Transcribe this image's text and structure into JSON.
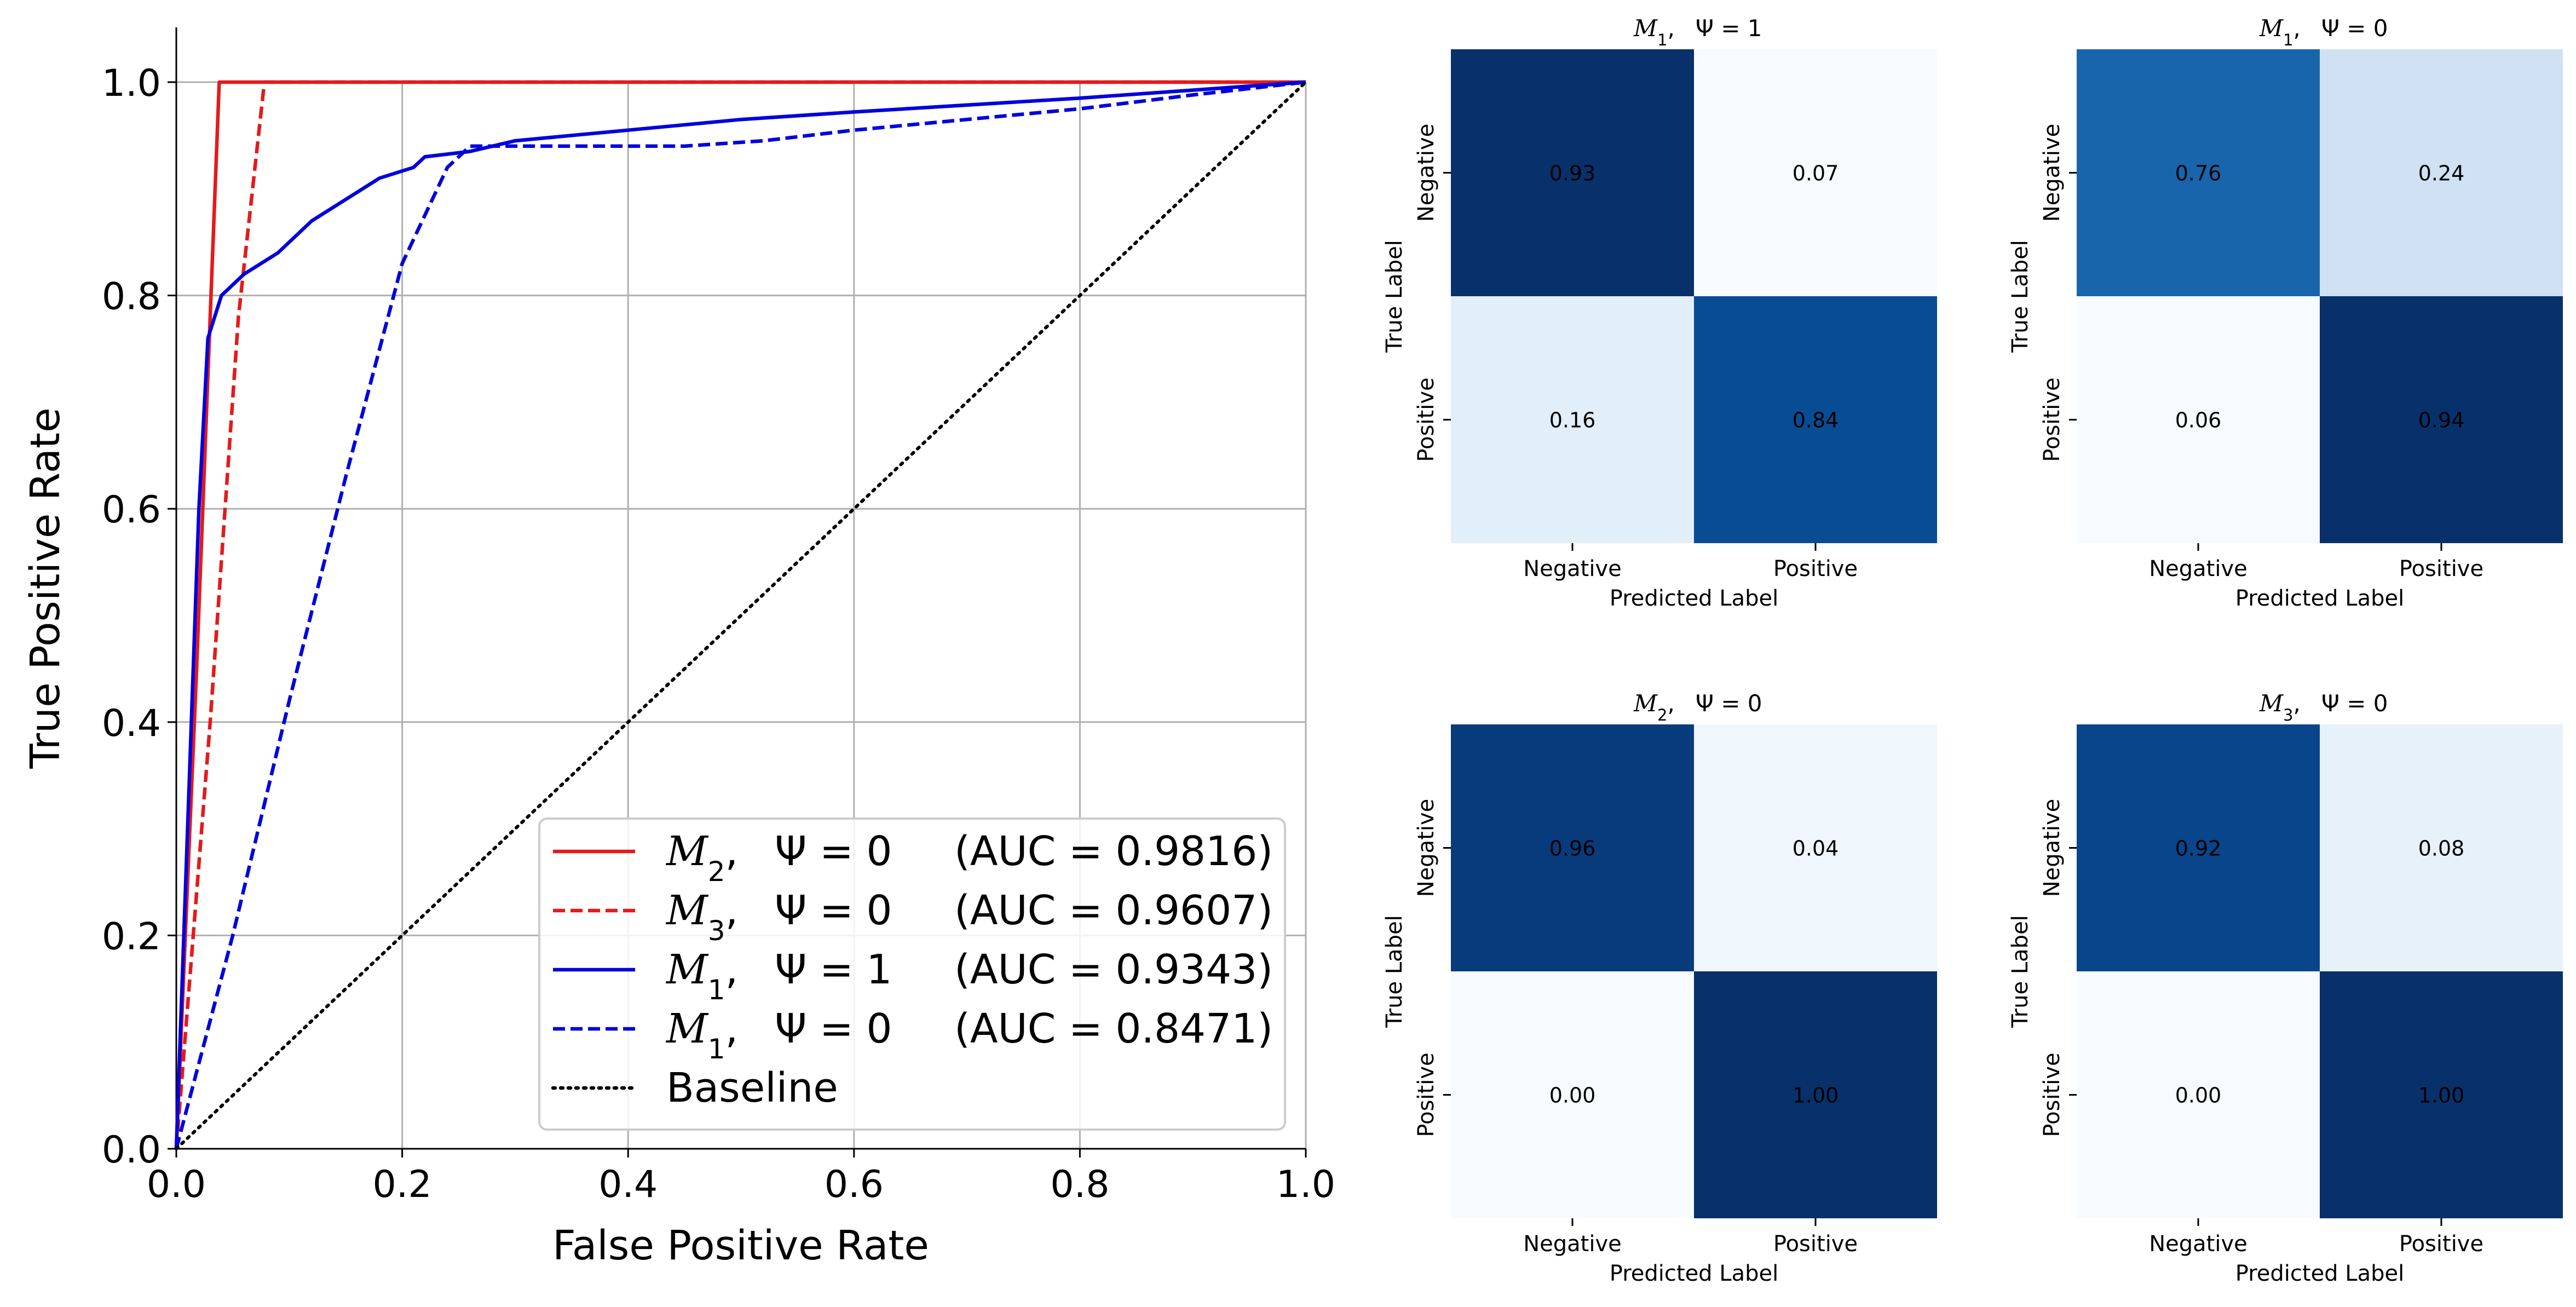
{
  "chart_data": [
    {
      "type": "line",
      "xlabel": "False Positive Rate",
      "ylabel": "True Positive Rate",
      "xlim": [
        0,
        1
      ],
      "ylim": [
        0,
        1
      ],
      "xticks": [
        "0.0",
        "0.2",
        "0.4",
        "0.6",
        "0.8",
        "1.0"
      ],
      "yticks": [
        "0.0",
        "0.2",
        "0.4",
        "0.6",
        "0.8",
        "1.0"
      ],
      "grid": true,
      "legend_position": "bottom-right",
      "series": [
        {
          "name": "M2, Ψ = 0",
          "model": "M",
          "sub": "2",
          "psi": "Ψ = 0",
          "auc": "(AUC = 0.9816)",
          "color": "#e41a1c",
          "style": "solid",
          "points": [
            [
              0,
              0
            ],
            [
              0.018,
              0.45
            ],
            [
              0.038,
              1.0
            ],
            [
              1.0,
              1.0
            ]
          ]
        },
        {
          "name": "M3, Ψ = 0",
          "model": "M",
          "sub": "3",
          "psi": "Ψ = 0",
          "auc": "(AUC = 0.9607)",
          "color": "#e41a1c",
          "style": "dashed",
          "points": [
            [
              0,
              0
            ],
            [
              0.03,
              0.4
            ],
            [
              0.055,
              0.78
            ],
            [
              0.078,
              1.0
            ],
            [
              1.0,
              1.0
            ]
          ]
        },
        {
          "name": "M1, Ψ = 1",
          "model": "M",
          "sub": "1",
          "psi": "Ψ = 1",
          "auc": "(AUC = 0.9343)",
          "color": "#0000dd",
          "style": "solid",
          "points": [
            [
              0,
              0
            ],
            [
              0.01,
              0.3
            ],
            [
              0.02,
              0.6
            ],
            [
              0.028,
              0.76
            ],
            [
              0.04,
              0.8
            ],
            [
              0.06,
              0.82
            ],
            [
              0.09,
              0.84
            ],
            [
              0.12,
              0.87
            ],
            [
              0.15,
              0.89
            ],
            [
              0.18,
              0.91
            ],
            [
              0.21,
              0.92
            ],
            [
              0.22,
              0.93
            ],
            [
              0.26,
              0.935
            ],
            [
              0.3,
              0.945
            ],
            [
              0.4,
              0.955
            ],
            [
              0.5,
              0.965
            ],
            [
              0.6,
              0.972
            ],
            [
              0.8,
              0.985
            ],
            [
              1.0,
              1.0
            ]
          ]
        },
        {
          "name": "M1, Ψ = 0",
          "model": "M",
          "sub": "1",
          "psi": "Ψ = 0",
          "auc": "(AUC = 0.8471)",
          "color": "#0000dd",
          "style": "dashed",
          "points": [
            [
              0,
              0
            ],
            [
              0.05,
              0.2
            ],
            [
              0.1,
              0.42
            ],
            [
              0.15,
              0.63
            ],
            [
              0.2,
              0.83
            ],
            [
              0.24,
              0.92
            ],
            [
              0.26,
              0.94
            ],
            [
              0.35,
              0.94
            ],
            [
              0.45,
              0.94
            ],
            [
              0.52,
              0.945
            ],
            [
              0.6,
              0.955
            ],
            [
              0.7,
              0.965
            ],
            [
              0.8,
              0.975
            ],
            [
              0.9,
              0.988
            ],
            [
              1.0,
              1.0
            ]
          ]
        },
        {
          "name": "Baseline",
          "label": "Baseline",
          "color": "#000000",
          "style": "dotted",
          "points": [
            [
              0,
              0
            ],
            [
              1,
              1
            ]
          ]
        }
      ]
    },
    {
      "type": "heatmap",
      "model": "M",
      "sub": "1",
      "psi": "Ψ = 1",
      "xlabel": "Predicted Label",
      "ylabel": "True Label",
      "xticks": [
        "Negative",
        "Positive"
      ],
      "yticks": [
        "Negative",
        "Positive"
      ],
      "values": [
        [
          0.93,
          0.07
        ],
        [
          0.16,
          0.84
        ]
      ],
      "labels": [
        [
          "0.93",
          "0.07"
        ],
        [
          "0.16",
          "0.84"
        ]
      ]
    },
    {
      "type": "heatmap",
      "model": "M",
      "sub": "1",
      "psi": "Ψ = 0",
      "xlabel": "Predicted Label",
      "ylabel": "True Label",
      "xticks": [
        "Negative",
        "Positive"
      ],
      "yticks": [
        "Negative",
        "Positive"
      ],
      "values": [
        [
          0.76,
          0.24
        ],
        [
          0.06,
          0.94
        ]
      ],
      "labels": [
        [
          "0.76",
          "0.24"
        ],
        [
          "0.06",
          "0.94"
        ]
      ]
    },
    {
      "type": "heatmap",
      "model": "M",
      "sub": "2",
      "psi": "Ψ = 0",
      "xlabel": "Predicted Label",
      "ylabel": "True Label",
      "xticks": [
        "Negative",
        "Positive"
      ],
      "yticks": [
        "Negative",
        "Positive"
      ],
      "values": [
        [
          0.96,
          0.04
        ],
        [
          0.0,
          1.0
        ]
      ],
      "labels": [
        [
          "0.96",
          "0.04"
        ],
        [
          "0.00",
          "1.00"
        ]
      ]
    },
    {
      "type": "heatmap",
      "model": "M",
      "sub": "3",
      "psi": "Ψ = 0",
      "xlabel": "Predicted Label",
      "ylabel": "True Label",
      "xticks": [
        "Negative",
        "Positive"
      ],
      "yticks": [
        "Negative",
        "Positive"
      ],
      "values": [
        [
          0.92,
          0.08
        ],
        [
          0.0,
          1.0
        ]
      ],
      "labels": [
        [
          "0.92",
          "0.08"
        ],
        [
          "0.00",
          "1.00"
        ]
      ]
    }
  ]
}
